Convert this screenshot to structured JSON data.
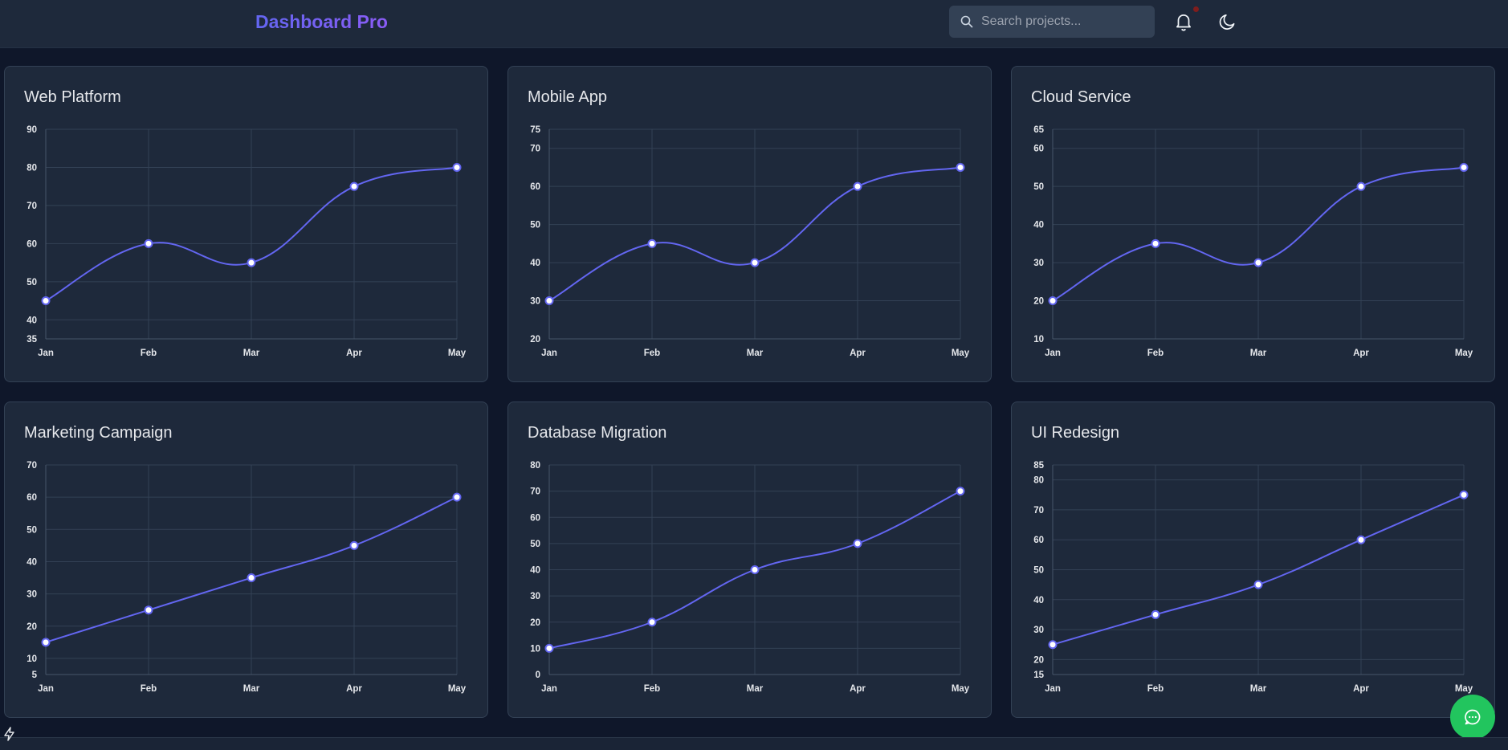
{
  "header": {
    "brand": "Dashboard Pro",
    "search_placeholder": "Search projects...",
    "bell_icon": "bell-icon",
    "theme_icon": "moon-icon"
  },
  "colors": {
    "accent": "#6366f1",
    "card": "#1e293b",
    "fab": "#22c55e"
  },
  "projects": [
    {
      "title": "Web Platform",
      "chart_data": {
        "type": "line",
        "categories": [
          "Jan",
          "Feb",
          "Mar",
          "Apr",
          "May"
        ],
        "values": [
          45,
          60,
          55,
          75,
          80
        ],
        "ylim": [
          35,
          90
        ],
        "yticks": [
          35,
          40,
          50,
          60,
          70,
          80,
          90
        ],
        "curve": "smooth"
      }
    },
    {
      "title": "Mobile App",
      "chart_data": {
        "type": "line",
        "categories": [
          "Jan",
          "Feb",
          "Mar",
          "Apr",
          "May"
        ],
        "values": [
          30,
          45,
          40,
          60,
          65
        ],
        "ylim": [
          20,
          75
        ],
        "yticks": [
          20,
          30,
          40,
          50,
          60,
          70,
          75
        ],
        "curve": "smooth"
      }
    },
    {
      "title": "Cloud Service",
      "chart_data": {
        "type": "line",
        "categories": [
          "Jan",
          "Feb",
          "Mar",
          "Apr",
          "May"
        ],
        "values": [
          20,
          35,
          30,
          50,
          55
        ],
        "ylim": [
          10,
          65
        ],
        "yticks": [
          10,
          20,
          30,
          40,
          50,
          60,
          65
        ],
        "curve": "smooth"
      }
    },
    {
      "title": "Marketing Campaign",
      "chart_data": {
        "type": "line",
        "categories": [
          "Jan",
          "Feb",
          "Mar",
          "Apr",
          "May"
        ],
        "values": [
          15,
          25,
          35,
          45,
          60
        ],
        "ylim": [
          5,
          70
        ],
        "yticks": [
          5,
          10,
          20,
          30,
          40,
          50,
          60,
          70
        ],
        "curve": "smooth"
      }
    },
    {
      "title": "Database Migration",
      "chart_data": {
        "type": "line",
        "categories": [
          "Jan",
          "Feb",
          "Mar",
          "Apr",
          "May"
        ],
        "values": [
          10,
          20,
          40,
          50,
          70
        ],
        "ylim": [
          0,
          80
        ],
        "yticks": [
          0,
          10,
          20,
          30,
          40,
          50,
          60,
          70,
          80
        ],
        "curve": "smooth"
      }
    },
    {
      "title": "UI Redesign",
      "chart_data": {
        "type": "line",
        "categories": [
          "Jan",
          "Feb",
          "Mar",
          "Apr",
          "May"
        ],
        "values": [
          25,
          35,
          45,
          60,
          75
        ],
        "ylim": [
          15,
          85
        ],
        "yticks": [
          15,
          20,
          30,
          40,
          50,
          60,
          70,
          80,
          85
        ],
        "curve": "smooth"
      }
    }
  ],
  "chat_icon": "chat-bubble-icon"
}
